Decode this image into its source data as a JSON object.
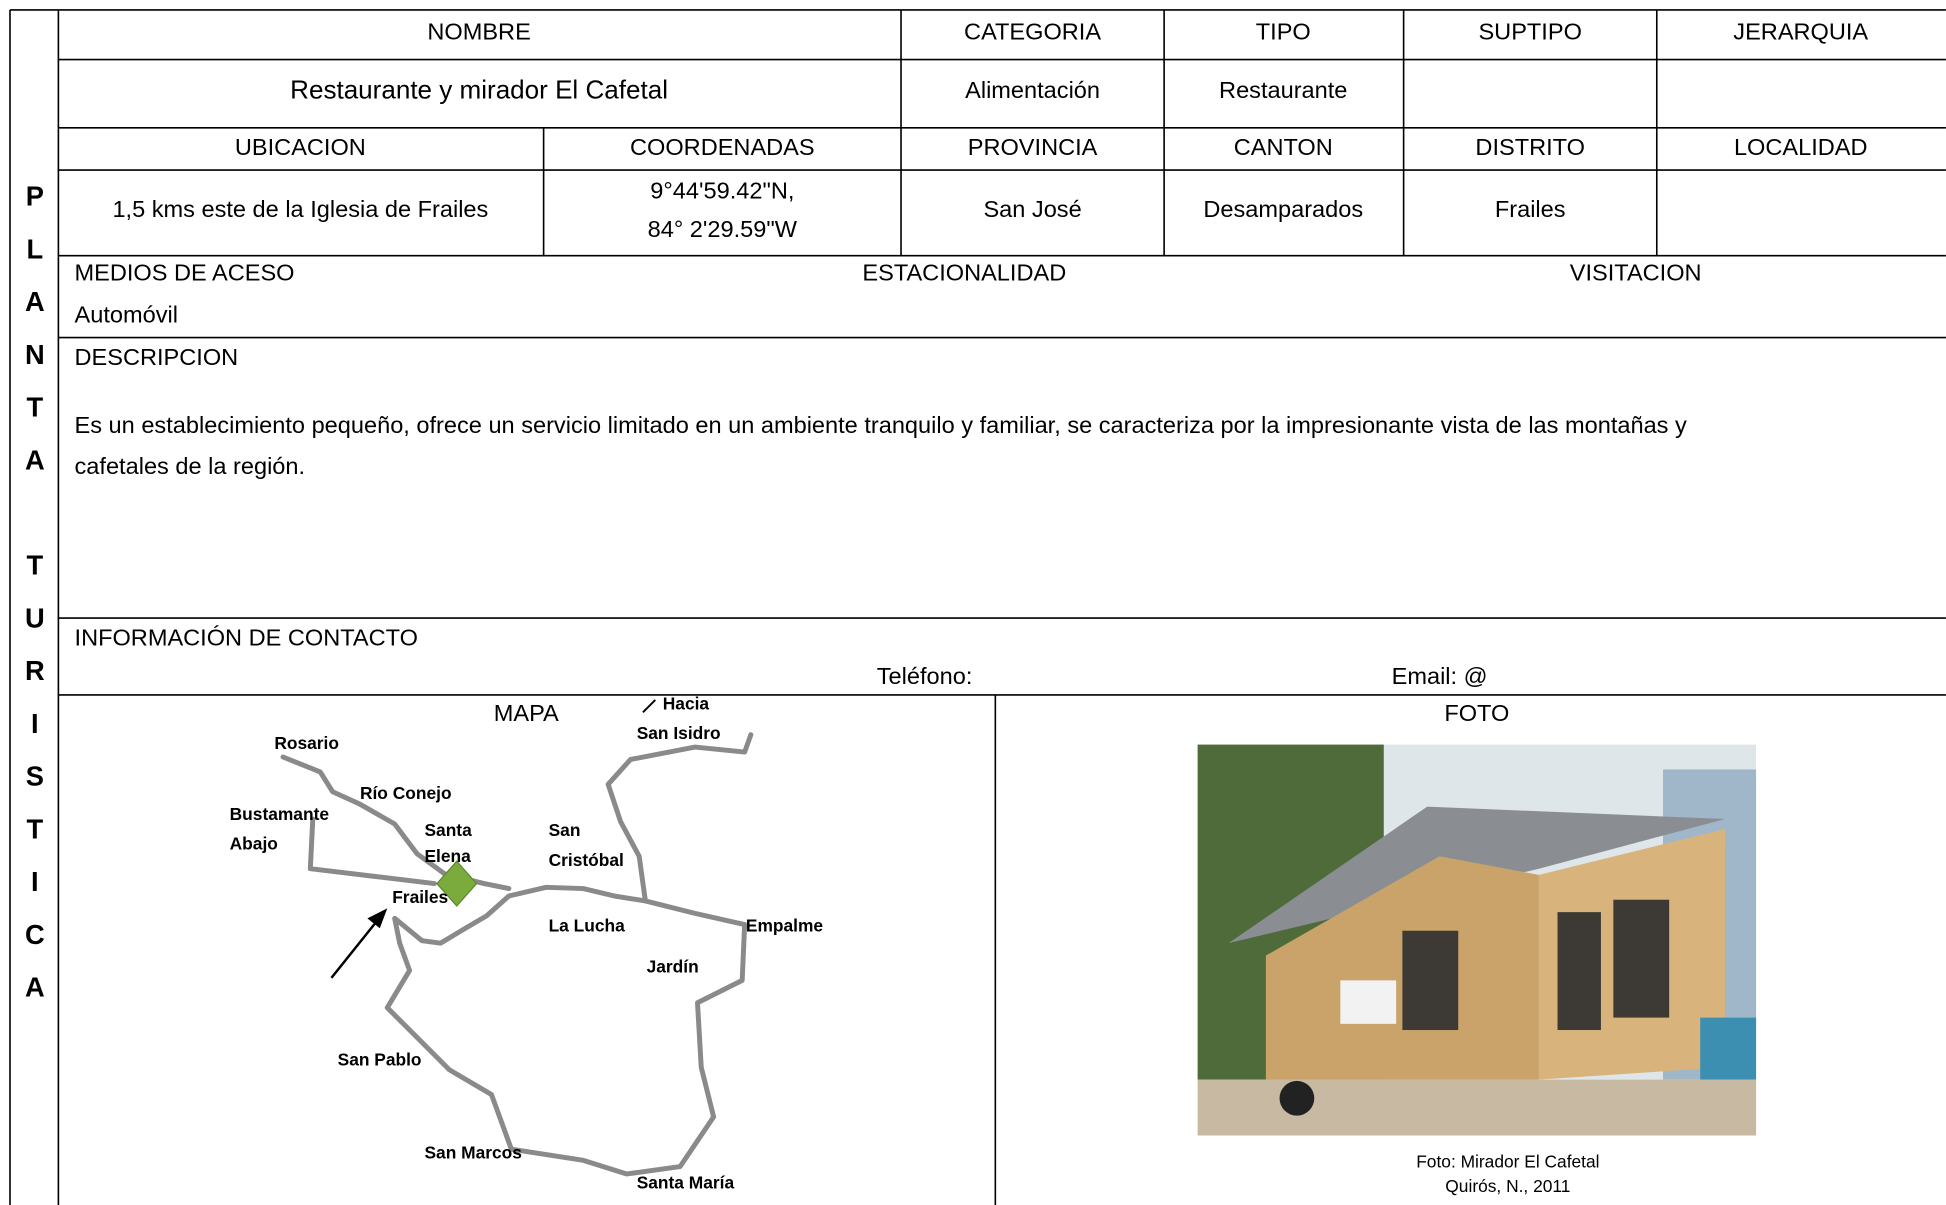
{
  "side_label": "PLANTA TURISTICA",
  "identity": {
    "headers": [
      "NOMBRE",
      "CATEGORIA",
      "TIPO",
      "SUPTIPO",
      "JERARQUIA"
    ],
    "name": "Restaurante y mirador El Cafetal",
    "category": "Alimentación",
    "type": "Restaurante"
  },
  "location": {
    "headers": [
      "UBICACION",
      "COORDENADAS",
      "PROVINCIA",
      "CANTON",
      "DISTRITO",
      "LOCALIDAD"
    ],
    "address": "1,5 kms este de la Iglesia de Frailes",
    "coordinates": [
      "9°44'59.42\"N,",
      "84° 2'29.59\"W"
    ],
    "province": "San José",
    "canton": "Desamparados",
    "district": "Frailes"
  },
  "access": {
    "headers": [
      "MEDIOS DE ACESO",
      "ESTACIONALIDAD",
      "VISITACION"
    ],
    "means": "Automóvil"
  },
  "description": {
    "header": "DESCRIPCION",
    "lines": [
      "Es un establecimiento pequeño, ofrece un servicio limitado en un ambiente tranquilo  y familiar, se caracteriza por la impresionante vista de las montañas y",
      "cafetales de la región."
    ]
  },
  "contact": {
    "header": "INFORMACIÓN DE CONTACTO",
    "phone": "Teléfono:",
    "email": "Email: @"
  },
  "map": {
    "title": "MAPA",
    "labels": [
      "Hacia",
      "San Isidro",
      "Rosario",
      "Río Conejo",
      "Bustamante",
      "Abajo",
      "Santa",
      "Elena",
      "San",
      "Cristóbal",
      "Frailes",
      "La Lucha",
      "Empalme",
      "Jardín",
      "San Pablo",
      "San Marcos",
      "Santa María"
    ]
  },
  "photo": {
    "title": "FOTO",
    "caption": [
      "Foto: Mirador El Cafetal",
      "Quirós, N., 2011"
    ]
  }
}
